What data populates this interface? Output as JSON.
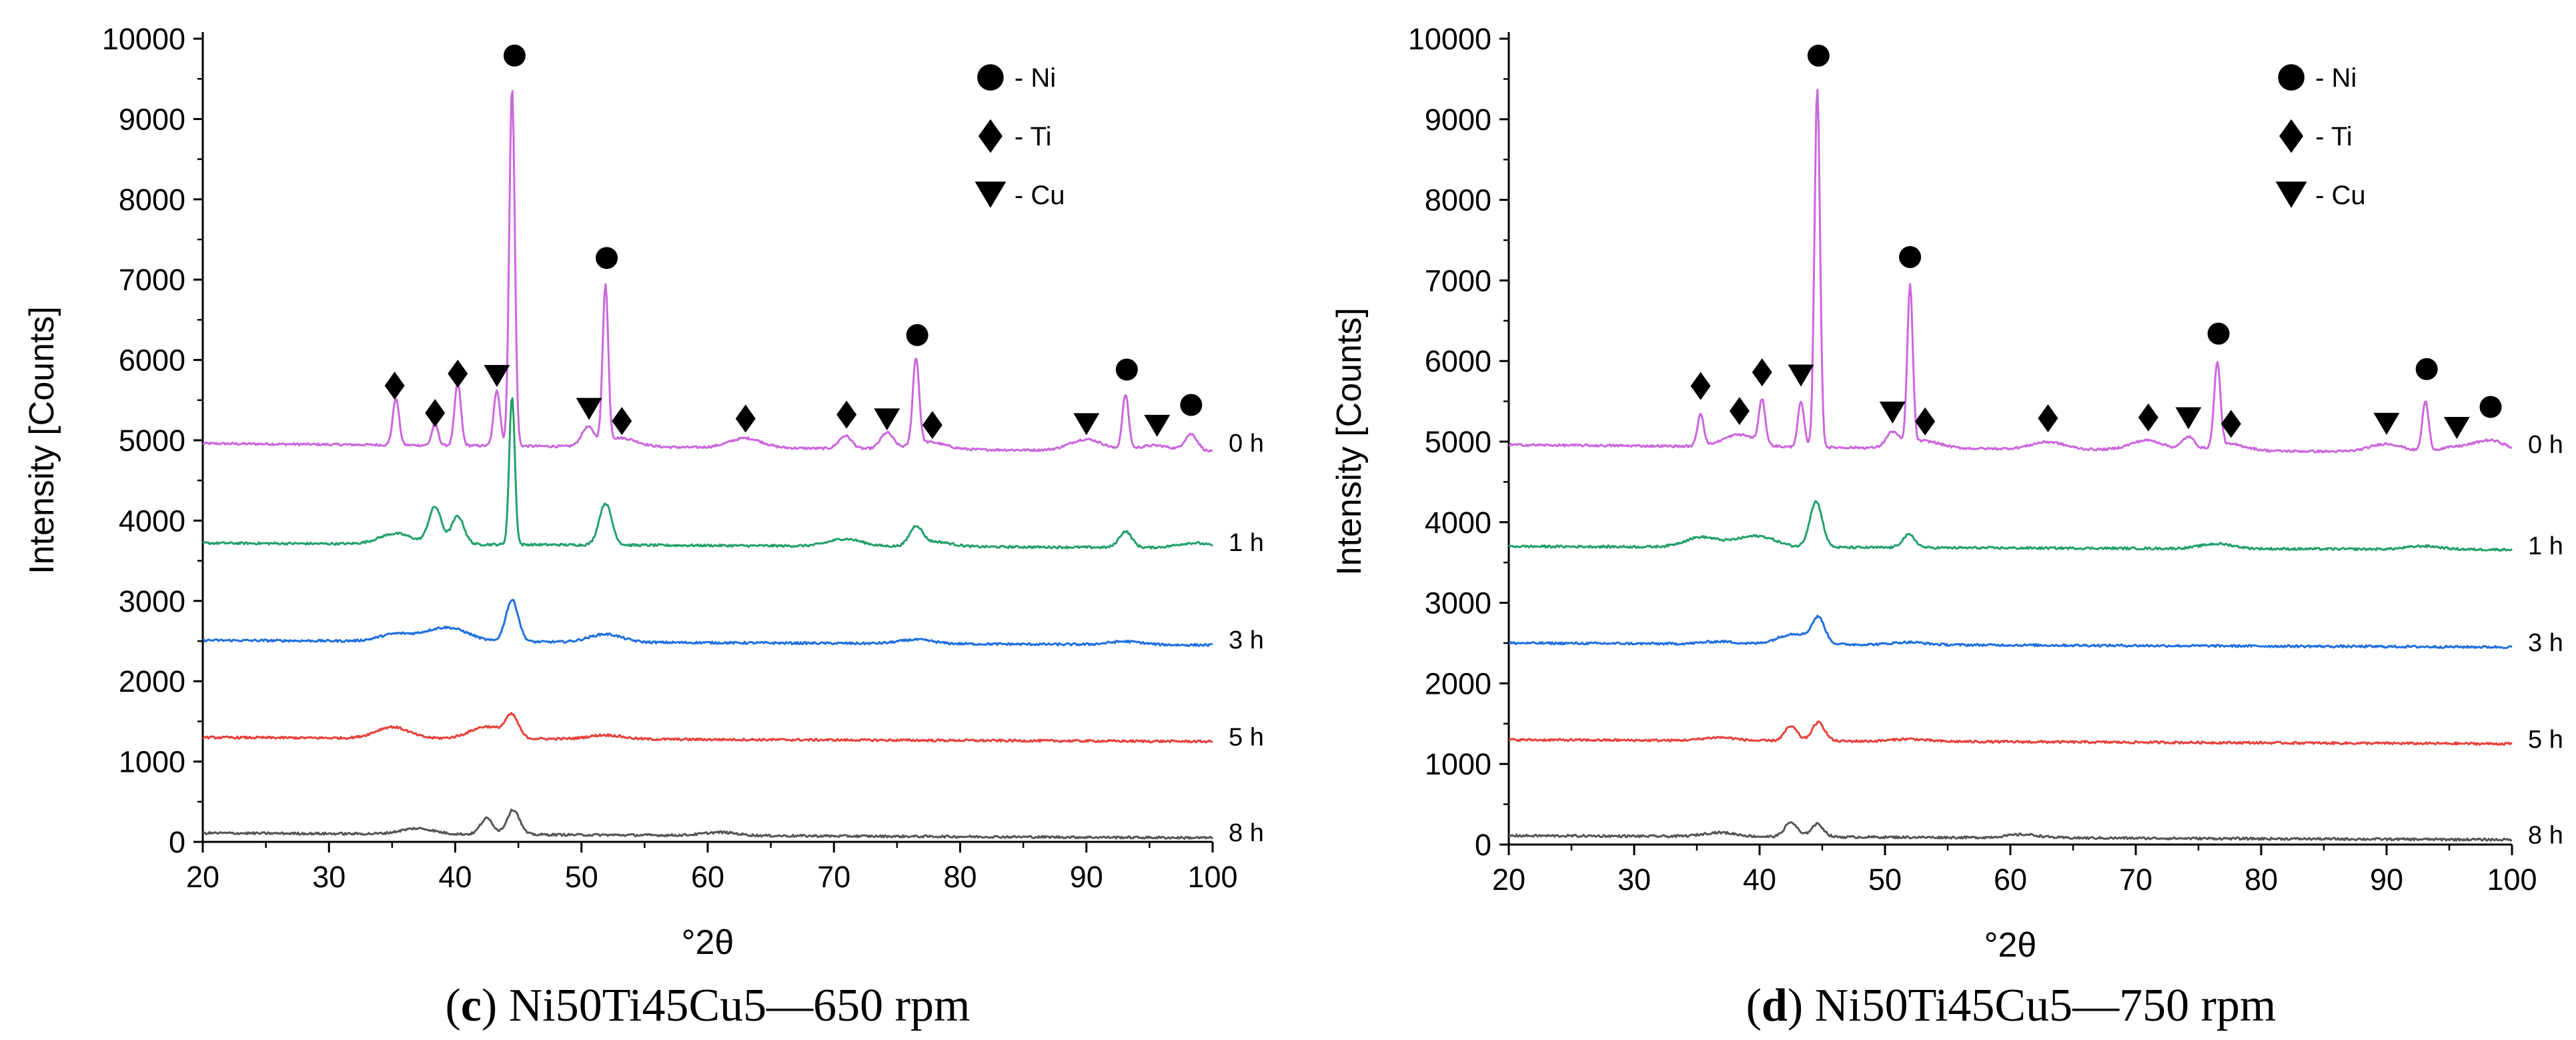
{
  "chart_data": [
    {
      "type": "line",
      "caption": {
        "letter": "c",
        "open": "(",
        "close": ")",
        "text": " Ni50Ti45Cu5—650 rpm"
      },
      "xlabel": "°2θ",
      "ylabel": "Intensity [Counts]",
      "xlim": [
        20,
        100
      ],
      "ylim": [
        0,
        10000
      ],
      "xticks": [
        20,
        30,
        40,
        50,
        60,
        70,
        80,
        90,
        100
      ],
      "yticks": [
        0,
        1000,
        2000,
        3000,
        4000,
        5000,
        6000,
        7000,
        8000,
        9000,
        10000
      ],
      "grid": false,
      "legend": {
        "placement": "top-right",
        "entries": [
          {
            "marker": "circle",
            "label": "- Ni"
          },
          {
            "marker": "diamond",
            "label": "- Ti"
          },
          {
            "marker": "triangle-down",
            "label": "- Cu"
          }
        ]
      },
      "series": [
        {
          "name": "0 h",
          "color": "#cc66dd",
          "baseline": 4960,
          "end": 4860,
          "peaks": [
            [
              35.3,
              580
            ],
            [
              38.4,
              270
            ],
            [
              40.2,
              780
            ],
            [
              43.3,
              700
            ],
            [
              44.5,
              4470
            ],
            [
              50.5,
              230
            ],
            [
              51.9,
              1960
            ],
            [
              53.1,
              110
            ],
            [
              63.0,
              120
            ],
            [
              70.9,
              160
            ],
            [
              74.2,
              200
            ],
            [
              76.5,
              1080
            ],
            [
              77.5,
              90
            ],
            [
              90.0,
              140
            ],
            [
              93.1,
              680
            ],
            [
              95.4,
              70
            ],
            [
              98.3,
              210
            ]
          ]
        },
        {
          "name": "1 h",
          "color": "#22a06b",
          "baseline": 3720,
          "end": 3660,
          "peaks": [
            [
              35.3,
              130
            ],
            [
              38.4,
              460
            ],
            [
              40.2,
              350
            ],
            [
              44.5,
              1850
            ],
            [
              51.9,
              520
            ],
            [
              70.9,
              90
            ],
            [
              76.5,
              230
            ],
            [
              78.0,
              60
            ],
            [
              93.1,
              200
            ],
            [
              98.5,
              60
            ]
          ]
        },
        {
          "name": "3 h",
          "color": "#1f6fe0",
          "baseline": 2510,
          "end": 2450,
          "peaks": [
            [
              35.3,
              90
            ],
            [
              38.4,
              110
            ],
            [
              40.2,
              110
            ],
            [
              44.5,
              520
            ],
            [
              51.9,
              100
            ],
            [
              76.5,
              50
            ],
            [
              93.1,
              40
            ]
          ]
        },
        {
          "name": "5 h",
          "color": "#e8403a",
          "baseline": 1300,
          "end": 1250,
          "peaks": [
            [
              35.0,
              140
            ],
            [
              42.5,
              150
            ],
            [
              44.5,
              260
            ],
            [
              51.9,
              50
            ]
          ]
        },
        {
          "name": "8 h",
          "color": "#555555",
          "baseline": 110,
          "end": 50,
          "peaks": [
            [
              37.0,
              70
            ],
            [
              42.5,
              200
            ],
            [
              44.6,
              310
            ],
            [
              61.0,
              40
            ]
          ]
        }
      ],
      "annotations": [
        {
          "marker": "circle",
          "x": 44.7,
          "y": 9790
        },
        {
          "marker": "circle",
          "x": 52.0,
          "y": 7270
        },
        {
          "marker": "circle",
          "x": 76.6,
          "y": 6310
        },
        {
          "marker": "circle",
          "x": 93.2,
          "y": 5880
        },
        {
          "marker": "circle",
          "x": 98.3,
          "y": 5440
        },
        {
          "marker": "diamond",
          "x": 35.2,
          "y": 5680
        },
        {
          "marker": "diamond",
          "x": 38.4,
          "y": 5340
        },
        {
          "marker": "diamond",
          "x": 40.2,
          "y": 5830
        },
        {
          "marker": "diamond",
          "x": 53.2,
          "y": 5240
        },
        {
          "marker": "diamond",
          "x": 63.0,
          "y": 5270
        },
        {
          "marker": "diamond",
          "x": 71.0,
          "y": 5320
        },
        {
          "marker": "diamond",
          "x": 77.8,
          "y": 5190
        },
        {
          "marker": "triangle-down",
          "x": 43.3,
          "y": 5800
        },
        {
          "marker": "triangle-down",
          "x": 50.6,
          "y": 5390
        },
        {
          "marker": "triangle-down",
          "x": 74.2,
          "y": 5260
        },
        {
          "marker": "triangle-down",
          "x": 90.0,
          "y": 5200
        },
        {
          "marker": "triangle-down",
          "x": 95.6,
          "y": 5180
        }
      ]
    },
    {
      "type": "line",
      "caption": {
        "letter": "d",
        "open": "(",
        "close": ")",
        "text": " Ni50Ti45Cu5—750 rpm"
      },
      "xlabel": "°2θ",
      "ylabel": "Intensity [Counts]",
      "xlim": [
        20,
        100
      ],
      "ylim": [
        0,
        10000
      ],
      "xticks": [
        20,
        30,
        40,
        50,
        60,
        70,
        80,
        90,
        100
      ],
      "yticks": [
        0,
        1000,
        2000,
        3000,
        4000,
        5000,
        6000,
        7000,
        8000,
        9000,
        10000
      ],
      "grid": false,
      "legend": {
        "placement": "top-right",
        "entries": [
          {
            "marker": "circle",
            "label": "- Ni"
          },
          {
            "marker": "diamond",
            "label": "- Ti"
          },
          {
            "marker": "triangle-down",
            "label": "- Cu"
          }
        ]
      },
      "series": [
        {
          "name": "0 h",
          "color": "#cc66dd",
          "baseline": 4960,
          "end": 4860,
          "peaks": [
            [
              35.3,
              400
            ],
            [
              38.4,
              150
            ],
            [
              40.2,
              540
            ],
            [
              43.3,
              560
            ],
            [
              44.6,
              4470
            ],
            [
              50.6,
              190
            ],
            [
              52.0,
              1960
            ],
            [
              53.1,
              90
            ],
            [
              63.0,
              90
            ],
            [
              70.9,
              120
            ],
            [
              74.2,
              160
            ],
            [
              76.5,
              1040
            ],
            [
              77.5,
              80
            ],
            [
              90.0,
              100
            ],
            [
              93.1,
              620
            ],
            [
              95.4,
              60
            ],
            [
              98.3,
              150
            ]
          ]
        },
        {
          "name": "1 h",
          "color": "#22a06b",
          "baseline": 3700,
          "end": 3660,
          "peaks": [
            [
              35.3,
              120
            ],
            [
              38.4,
              60
            ],
            [
              40.2,
              110
            ],
            [
              44.5,
              570
            ],
            [
              51.9,
              160
            ],
            [
              76.5,
              60
            ],
            [
              93.0,
              40
            ]
          ]
        },
        {
          "name": "3 h",
          "color": "#1f6fe0",
          "baseline": 2500,
          "end": 2450,
          "peaks": [
            [
              36.8,
              30
            ],
            [
              42.8,
              130
            ],
            [
              44.7,
              300
            ],
            [
              51.9,
              30
            ]
          ]
        },
        {
          "name": "5 h",
          "color": "#e8403a",
          "baseline": 1300,
          "end": 1250,
          "peaks": [
            [
              36.8,
              40
            ],
            [
              42.5,
              180
            ],
            [
              44.7,
              230
            ],
            [
              51.9,
              30
            ]
          ]
        },
        {
          "name": "8 h",
          "color": "#555555",
          "baseline": 110,
          "end": 60,
          "peaks": [
            [
              36.8,
              50
            ],
            [
              42.5,
              180
            ],
            [
              44.6,
              160
            ],
            [
              61.0,
              40
            ]
          ]
        }
      ],
      "annotations": [
        {
          "marker": "circle",
          "x": 44.7,
          "y": 9790
        },
        {
          "marker": "circle",
          "x": 52.0,
          "y": 7290
        },
        {
          "marker": "circle",
          "x": 76.6,
          "y": 6340
        },
        {
          "marker": "circle",
          "x": 93.2,
          "y": 5900
        },
        {
          "marker": "circle",
          "x": 98.3,
          "y": 5430
        },
        {
          "marker": "diamond",
          "x": 35.3,
          "y": 5690
        },
        {
          "marker": "diamond",
          "x": 38.4,
          "y": 5380
        },
        {
          "marker": "diamond",
          "x": 40.2,
          "y": 5860
        },
        {
          "marker": "diamond",
          "x": 53.2,
          "y": 5250
        },
        {
          "marker": "diamond",
          "x": 63.0,
          "y": 5290
        },
        {
          "marker": "diamond",
          "x": 71.0,
          "y": 5300
        },
        {
          "marker": "diamond",
          "x": 77.6,
          "y": 5220
        },
        {
          "marker": "triangle-down",
          "x": 43.3,
          "y": 5820
        },
        {
          "marker": "triangle-down",
          "x": 50.6,
          "y": 5360
        },
        {
          "marker": "triangle-down",
          "x": 74.2,
          "y": 5290
        },
        {
          "marker": "triangle-down",
          "x": 90.0,
          "y": 5220
        },
        {
          "marker": "triangle-down",
          "x": 95.6,
          "y": 5170
        }
      ]
    }
  ]
}
